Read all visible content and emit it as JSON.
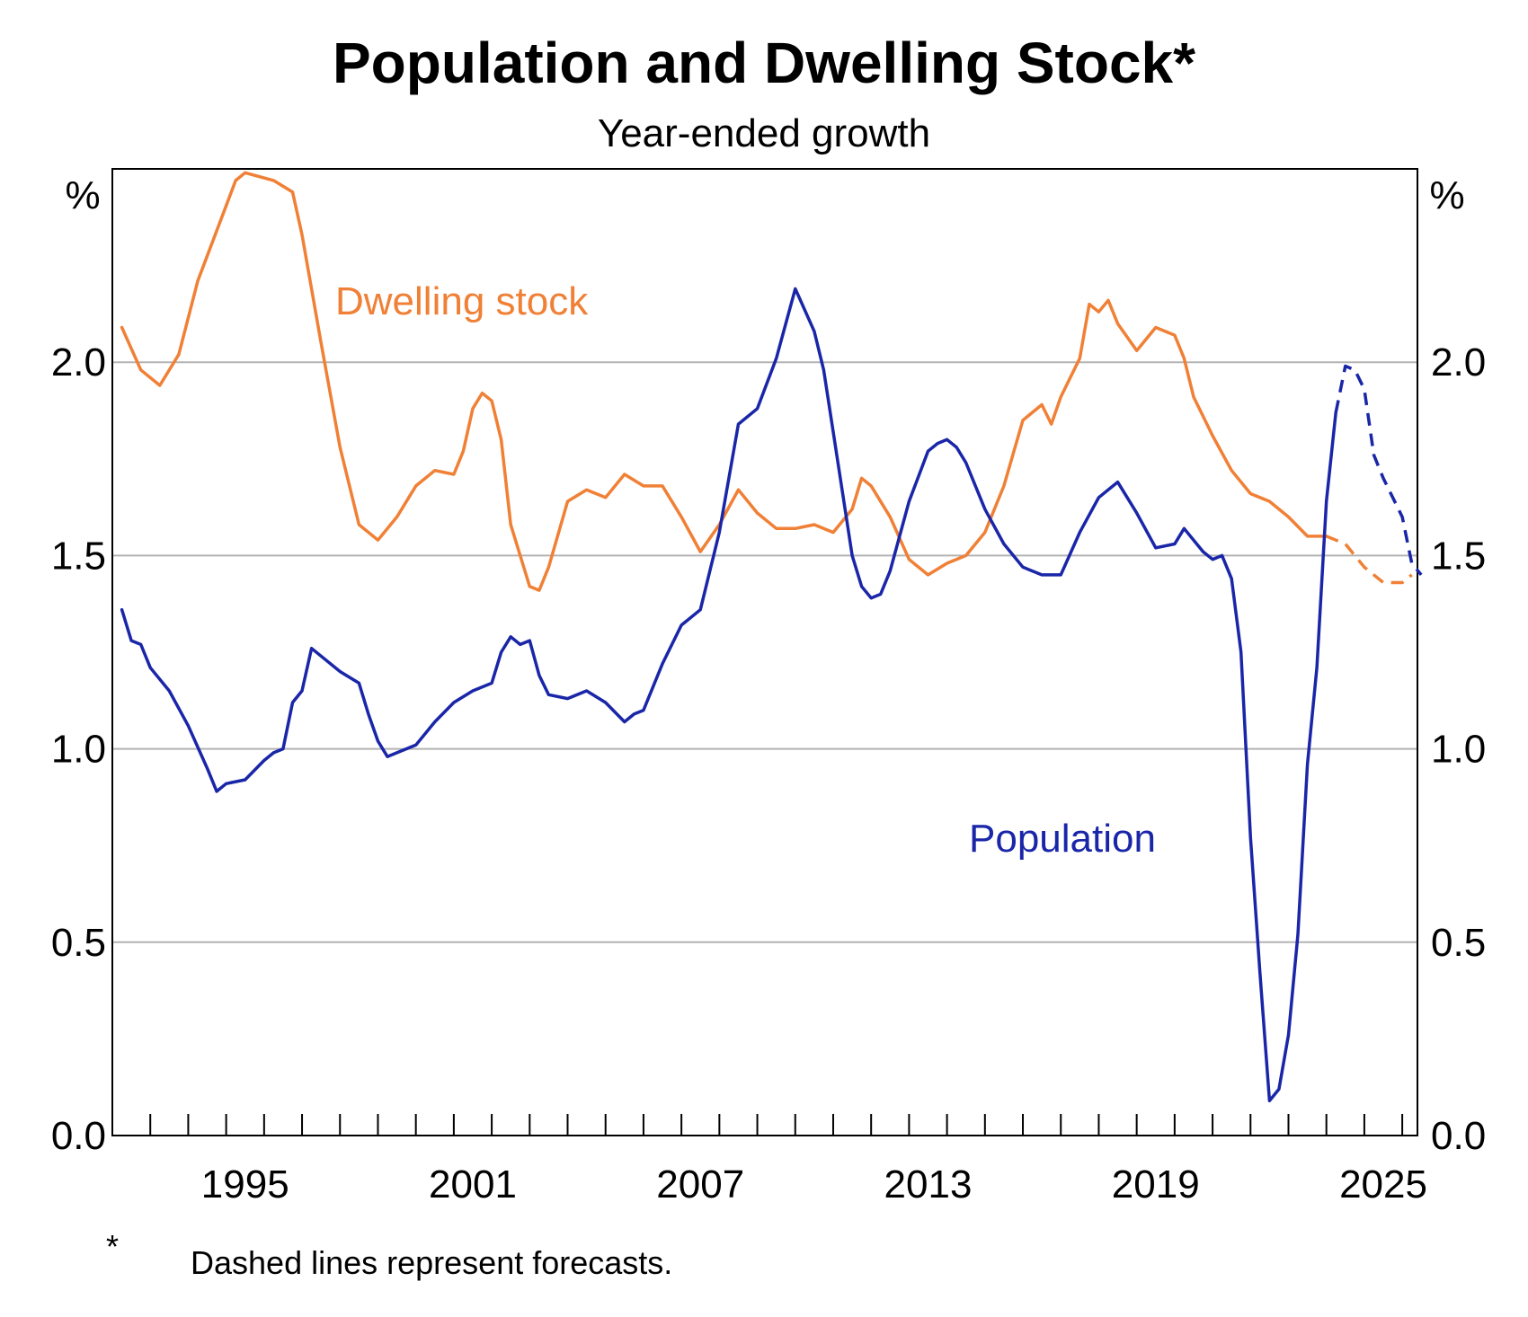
{
  "chart_data": {
    "type": "line",
    "title": "Population and Dwelling Stock*",
    "subtitle": "Year-ended growth",
    "y_unit_left": "%",
    "y_unit_right": "%",
    "ylim": [
      0.0,
      2.5
    ],
    "yticks": [
      "0.0",
      "0.5",
      "1.0",
      "1.5",
      "2.0"
    ],
    "xlim": [
      1991.0,
      2025.4
    ],
    "xtick_labels": [
      "1995",
      "2001",
      "2007",
      "2013",
      "2019",
      "2025"
    ],
    "grid": true,
    "series": [
      {
        "name": "Dwelling stock",
        "color": "#f08036",
        "actual": [
          [
            1991.25,
            2.09
          ],
          [
            1991.75,
            1.98
          ],
          [
            1992.25,
            1.94
          ],
          [
            1992.75,
            2.02
          ],
          [
            1993.25,
            2.21
          ],
          [
            1993.75,
            2.34
          ],
          [
            1994.25,
            2.47
          ],
          [
            1994.5,
            2.49
          ],
          [
            1995.25,
            2.47
          ],
          [
            1995.75,
            2.44
          ],
          [
            1996.0,
            2.33
          ],
          [
            1996.5,
            2.05
          ],
          [
            1997.0,
            1.78
          ],
          [
            1997.5,
            1.58
          ],
          [
            1998.0,
            1.54
          ],
          [
            1998.5,
            1.6
          ],
          [
            1999.0,
            1.68
          ],
          [
            1999.5,
            1.72
          ],
          [
            2000.0,
            1.71
          ],
          [
            2000.25,
            1.77
          ],
          [
            2000.5,
            1.88
          ],
          [
            2000.75,
            1.92
          ],
          [
            2001.0,
            1.9
          ],
          [
            2001.25,
            1.8
          ],
          [
            2001.5,
            1.58
          ],
          [
            2002.0,
            1.42
          ],
          [
            2002.25,
            1.41
          ],
          [
            2002.5,
            1.47
          ],
          [
            2003.0,
            1.64
          ],
          [
            2003.5,
            1.67
          ],
          [
            2004.0,
            1.65
          ],
          [
            2004.5,
            1.71
          ],
          [
            2005.0,
            1.68
          ],
          [
            2005.5,
            1.68
          ],
          [
            2006.0,
            1.6
          ],
          [
            2006.5,
            1.51
          ],
          [
            2007.0,
            1.58
          ],
          [
            2007.5,
            1.67
          ],
          [
            2008.0,
            1.61
          ],
          [
            2008.5,
            1.57
          ],
          [
            2009.0,
            1.57
          ],
          [
            2009.5,
            1.58
          ],
          [
            2010.0,
            1.56
          ],
          [
            2010.5,
            1.62
          ],
          [
            2010.75,
            1.7
          ],
          [
            2011.0,
            1.68
          ],
          [
            2011.5,
            1.6
          ],
          [
            2012.0,
            1.49
          ],
          [
            2012.5,
            1.45
          ],
          [
            2013.0,
            1.48
          ],
          [
            2013.5,
            1.5
          ],
          [
            2014.0,
            1.56
          ],
          [
            2014.5,
            1.68
          ],
          [
            2015.0,
            1.85
          ],
          [
            2015.5,
            1.89
          ],
          [
            2015.75,
            1.84
          ],
          [
            2016.0,
            1.91
          ],
          [
            2016.5,
            2.01
          ],
          [
            2016.75,
            2.15
          ],
          [
            2017.0,
            2.13
          ],
          [
            2017.25,
            2.16
          ],
          [
            2017.5,
            2.1
          ],
          [
            2018.0,
            2.03
          ],
          [
            2018.5,
            2.09
          ],
          [
            2019.0,
            2.07
          ],
          [
            2019.25,
            2.01
          ],
          [
            2019.5,
            1.91
          ],
          [
            2020.0,
            1.81
          ],
          [
            2020.5,
            1.72
          ],
          [
            2021.0,
            1.66
          ],
          [
            2021.5,
            1.64
          ],
          [
            2022.0,
            1.6
          ],
          [
            2022.5,
            1.55
          ],
          [
            2023.0,
            1.55
          ]
        ],
        "forecast": [
          [
            2023.0,
            1.55
          ],
          [
            2023.5,
            1.53
          ],
          [
            2024.0,
            1.47
          ],
          [
            2024.5,
            1.43
          ],
          [
            2025.0,
            1.43
          ],
          [
            2025.25,
            1.45
          ]
        ]
      },
      {
        "name": "Population",
        "color": "#1a26a8",
        "actual": [
          [
            1991.25,
            1.36
          ],
          [
            1991.5,
            1.28
          ],
          [
            1991.75,
            1.27
          ],
          [
            1992.0,
            1.21
          ],
          [
            1992.5,
            1.15
          ],
          [
            1993.0,
            1.06
          ],
          [
            1993.5,
            0.95
          ],
          [
            1993.75,
            0.89
          ],
          [
            1994.0,
            0.91
          ],
          [
            1994.5,
            0.92
          ],
          [
            1995.0,
            0.97
          ],
          [
            1995.25,
            0.99
          ],
          [
            1995.5,
            1.0
          ],
          [
            1995.75,
            1.12
          ],
          [
            1996.0,
            1.15
          ],
          [
            1996.25,
            1.26
          ],
          [
            1996.5,
            1.24
          ],
          [
            1997.0,
            1.2
          ],
          [
            1997.5,
            1.17
          ],
          [
            1997.75,
            1.09
          ],
          [
            1998.0,
            1.02
          ],
          [
            1998.25,
            0.98
          ],
          [
            1998.5,
            0.99
          ],
          [
            1999.0,
            1.01
          ],
          [
            1999.5,
            1.07
          ],
          [
            2000.0,
            1.12
          ],
          [
            2000.5,
            1.15
          ],
          [
            2001.0,
            1.17
          ],
          [
            2001.25,
            1.25
          ],
          [
            2001.5,
            1.29
          ],
          [
            2001.75,
            1.27
          ],
          [
            2002.0,
            1.28
          ],
          [
            2002.25,
            1.19
          ],
          [
            2002.5,
            1.14
          ],
          [
            2003.0,
            1.13
          ],
          [
            2003.5,
            1.15
          ],
          [
            2004.0,
            1.12
          ],
          [
            2004.5,
            1.07
          ],
          [
            2004.75,
            1.09
          ],
          [
            2005.0,
            1.1
          ],
          [
            2005.5,
            1.22
          ],
          [
            2006.0,
            1.32
          ],
          [
            2006.5,
            1.36
          ],
          [
            2007.0,
            1.56
          ],
          [
            2007.5,
            1.84
          ],
          [
            2008.0,
            1.88
          ],
          [
            2008.5,
            2.01
          ],
          [
            2009.0,
            2.19
          ],
          [
            2009.5,
            2.08
          ],
          [
            2009.75,
            1.98
          ],
          [
            2010.0,
            1.82
          ],
          [
            2010.5,
            1.5
          ],
          [
            2010.75,
            1.42
          ],
          [
            2011.0,
            1.39
          ],
          [
            2011.25,
            1.4
          ],
          [
            2011.5,
            1.46
          ],
          [
            2012.0,
            1.64
          ],
          [
            2012.5,
            1.77
          ],
          [
            2012.75,
            1.79
          ],
          [
            2013.0,
            1.8
          ],
          [
            2013.25,
            1.78
          ],
          [
            2013.5,
            1.74
          ],
          [
            2014.0,
            1.62
          ],
          [
            2014.5,
            1.53
          ],
          [
            2015.0,
            1.47
          ],
          [
            2015.5,
            1.45
          ],
          [
            2016.0,
            1.45
          ],
          [
            2016.5,
            1.56
          ],
          [
            2017.0,
            1.65
          ],
          [
            2017.5,
            1.69
          ],
          [
            2018.0,
            1.61
          ],
          [
            2018.5,
            1.52
          ],
          [
            2019.0,
            1.53
          ],
          [
            2019.25,
            1.57
          ],
          [
            2019.75,
            1.51
          ],
          [
            2020.0,
            1.49
          ],
          [
            2020.25,
            1.5
          ],
          [
            2020.5,
            1.44
          ],
          [
            2020.75,
            1.25
          ],
          [
            2021.0,
            0.77
          ],
          [
            2021.25,
            0.42
          ],
          [
            2021.5,
            0.09
          ],
          [
            2021.75,
            0.12
          ],
          [
            2022.0,
            0.26
          ],
          [
            2022.25,
            0.52
          ],
          [
            2022.5,
            0.96
          ],
          [
            2022.75,
            1.21
          ],
          [
            2023.0,
            1.64
          ],
          [
            2023.25,
            1.87
          ]
        ],
        "forecast": [
          [
            2023.25,
            1.87
          ],
          [
            2023.5,
            1.99
          ],
          [
            2023.75,
            1.98
          ],
          [
            2024.0,
            1.93
          ],
          [
            2024.25,
            1.76
          ],
          [
            2024.5,
            1.7
          ],
          [
            2025.0,
            1.6
          ],
          [
            2025.25,
            1.48
          ],
          [
            2025.5,
            1.45
          ]
        ]
      }
    ]
  },
  "footnote": {
    "marker": "*",
    "text": "Dashed lines represent forecasts."
  }
}
